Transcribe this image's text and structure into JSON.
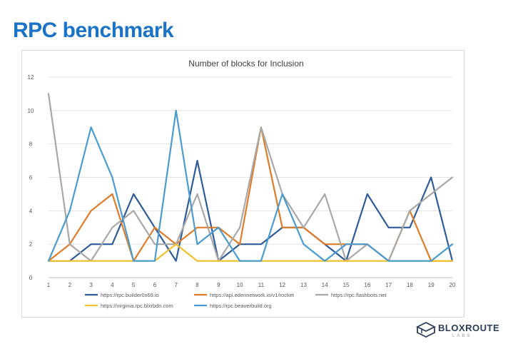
{
  "page": {
    "title": "RPC benchmark"
  },
  "logo": {
    "name": "BLOXROUTE",
    "sub": "LABS"
  },
  "chart_data": {
    "type": "line",
    "title": "Number of blocks for Inclusion",
    "xlabel": "",
    "ylabel": "",
    "categories": [
      "1",
      "2",
      "3",
      "4",
      "5",
      "6",
      "7",
      "8",
      "9",
      "10",
      "11",
      "12",
      "13",
      "14",
      "15",
      "16",
      "17",
      "18",
      "19",
      "20"
    ],
    "ylim": [
      0,
      12
    ],
    "yticks": [
      0,
      2,
      4,
      6,
      8,
      10,
      12
    ],
    "grid": true,
    "legend_position": "bottom",
    "series": [
      {
        "name": "https://rpc.builder0x69.io",
        "color": "#2e5b9a",
        "values": [
          1,
          1,
          2,
          2,
          5,
          3,
          1,
          7,
          1,
          2,
          2,
          3,
          3,
          2,
          1,
          5,
          3,
          3,
          6,
          1
        ]
      },
      {
        "name": "https://api.edennetwork.io/v1/rocket",
        "color": "#e07b28",
        "values": [
          1,
          2,
          4,
          5,
          1,
          3,
          2,
          3,
          3,
          2,
          9,
          3,
          3,
          2,
          2,
          2,
          1,
          4,
          1,
          1
        ]
      },
      {
        "name": "https://rpc.flashbots.net",
        "color": "#a8a8a8",
        "values": [
          11,
          2,
          1,
          3,
          4,
          2,
          2,
          5,
          1,
          3,
          9,
          5,
          3,
          5,
          1,
          2,
          1,
          4,
          5,
          6
        ]
      },
      {
        "name": "https://virginia.rpc.blxrbdn.com",
        "color": "#f2c12e",
        "values": [
          1,
          1,
          1,
          1,
          1,
          1,
          2,
          1,
          1,
          1,
          1,
          1,
          1,
          1,
          1,
          1,
          1,
          1,
          1,
          1
        ]
      },
      {
        "name": "https://rpc.beaverbuild.org",
        "color": "#4a9cd0",
        "values": [
          1,
          4,
          9,
          6,
          1,
          1,
          10,
          2,
          3,
          1,
          1,
          5,
          2,
          1,
          2,
          2,
          1,
          1,
          1,
          2
        ]
      }
    ]
  }
}
